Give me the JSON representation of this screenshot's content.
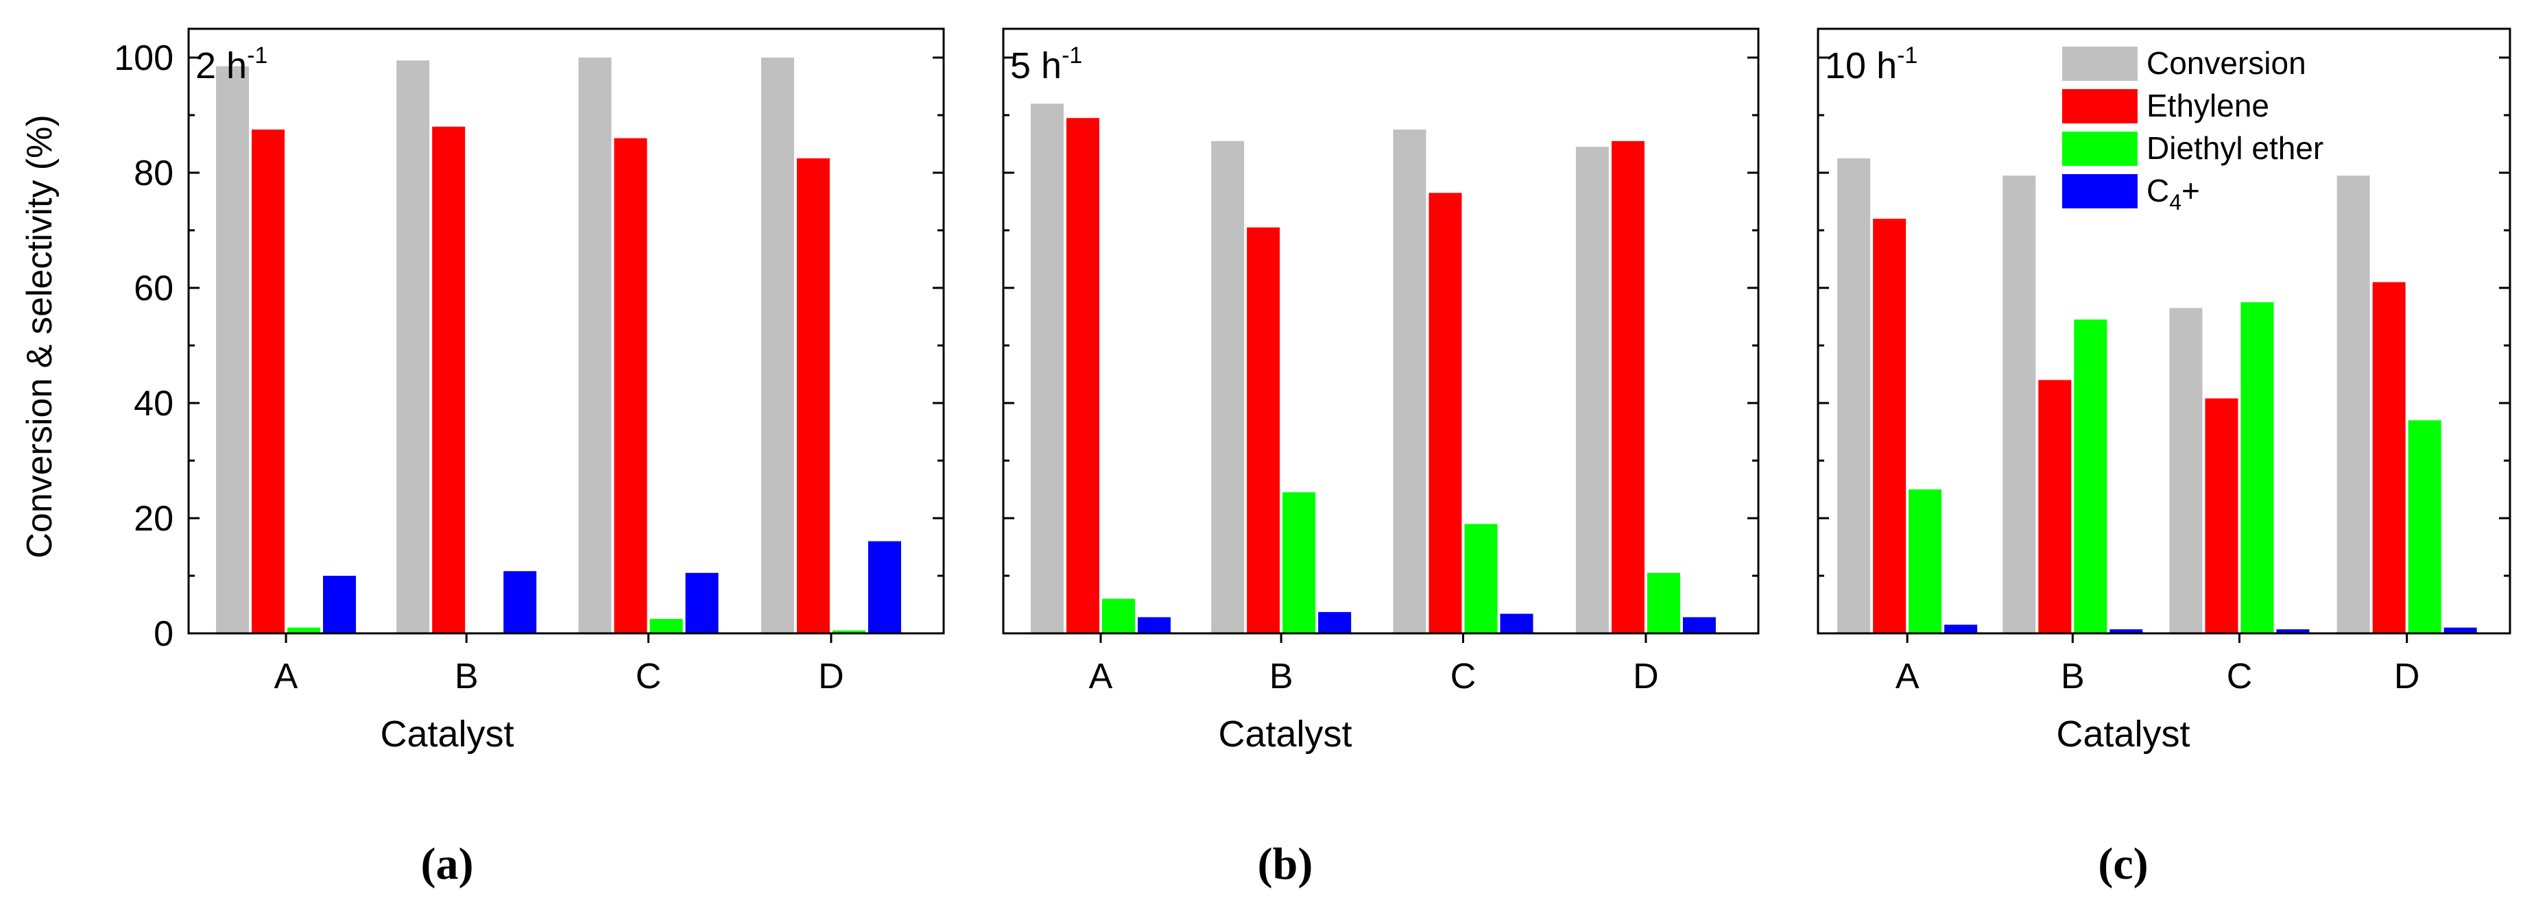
{
  "colors": {
    "Conversion": "#c0c0c0",
    "Ethylene": "#ff0000",
    "Diethyl ether": "#00ff00",
    "C4+": "#0000ff"
  },
  "chart_data": [
    {
      "type": "bar",
      "panel": "(a)",
      "annotation": "2 h",
      "annotation_sup": "-1",
      "xlabel": "Catalyst",
      "ylabel": "Conversion & selectivity (%)",
      "ylim": [
        0,
        105
      ],
      "yticks": [
        0,
        20,
        40,
        60,
        80,
        100
      ],
      "categories": [
        "A",
        "B",
        "C",
        "D"
      ],
      "series": [
        {
          "name": "Conversion",
          "values": [
            98.5,
            99.5,
            100,
            100
          ]
        },
        {
          "name": "Ethylene",
          "values": [
            87.5,
            88,
            86,
            82.5
          ]
        },
        {
          "name": "Diethyl ether",
          "values": [
            1,
            0,
            2.5,
            0.5
          ]
        },
        {
          "name": "C4+",
          "values": [
            10,
            10.8,
            10.5,
            16
          ]
        }
      ]
    },
    {
      "type": "bar",
      "panel": "(b)",
      "annotation": "5 h",
      "annotation_sup": "-1",
      "xlabel": "Catalyst",
      "ylabel": "",
      "ylim": [
        0,
        105
      ],
      "yticks": [
        0,
        20,
        40,
        60,
        80,
        100
      ],
      "categories": [
        "A",
        "B",
        "C",
        "D"
      ],
      "series": [
        {
          "name": "Conversion",
          "values": [
            92,
            85.5,
            87.5,
            84.5
          ]
        },
        {
          "name": "Ethylene",
          "values": [
            89.5,
            70.5,
            76.5,
            85.5
          ]
        },
        {
          "name": "Diethyl ether",
          "values": [
            6,
            24.5,
            19,
            10.5
          ]
        },
        {
          "name": "C4+",
          "values": [
            2.8,
            3.7,
            3.4,
            2.8
          ]
        }
      ]
    },
    {
      "type": "bar",
      "panel": "(c)",
      "annotation": "10 h",
      "annotation_sup": "-1",
      "xlabel": "Catalyst",
      "ylabel": "",
      "ylim": [
        0,
        105
      ],
      "yticks": [
        0,
        20,
        40,
        60,
        80,
        100
      ],
      "categories": [
        "A",
        "B",
        "C",
        "D"
      ],
      "legend": {
        "placement": "top-right",
        "entries": [
          "Conversion",
          "Ethylene",
          "Diethyl ether",
          "C4+"
        ]
      },
      "series": [
        {
          "name": "Conversion",
          "values": [
            82.5,
            79.5,
            56.5,
            79.5
          ]
        },
        {
          "name": "Ethylene",
          "values": [
            72,
            44,
            40.8,
            61
          ]
        },
        {
          "name": "Diethyl ether",
          "values": [
            25,
            54.5,
            57.5,
            37
          ]
        },
        {
          "name": "C4+",
          "values": [
            1.5,
            0.7,
            0.7,
            1
          ]
        }
      ]
    }
  ]
}
